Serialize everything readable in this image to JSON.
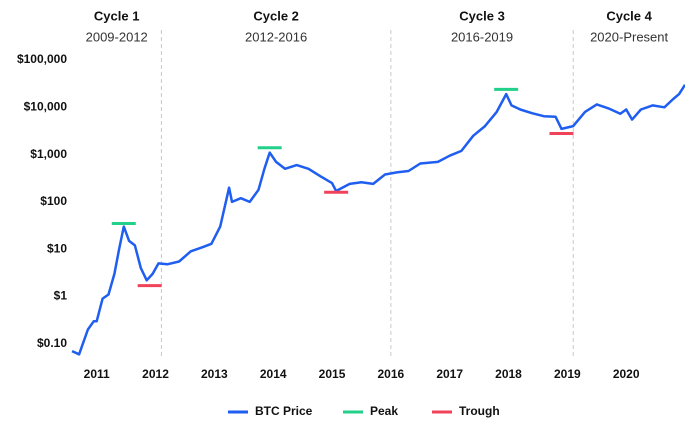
{
  "chart_data": {
    "type": "line",
    "log_y": true,
    "grid": false,
    "xlim": [
      2010.58,
      2021.0
    ],
    "xticks": [
      2011,
      2012,
      2013,
      2014,
      2015,
      2016,
      2017,
      2018,
      2019,
      2020
    ],
    "ylim": [
      0.05,
      150000
    ],
    "yticks": [
      {
        "value": 0.1,
        "label": "$0.10"
      },
      {
        "value": 1,
        "label": "$1"
      },
      {
        "value": 10,
        "label": "$10"
      },
      {
        "value": 100,
        "label": "$100"
      },
      {
        "value": 1000,
        "label": "$1,000"
      },
      {
        "value": 10000,
        "label": "$10,000"
      },
      {
        "value": 100000,
        "label": "$100,000"
      }
    ],
    "dividers": [
      2012.1,
      2016.0,
      2019.1
    ],
    "annotations": [
      {
        "title": "Cycle 1",
        "subtitle": "2009-2012"
      },
      {
        "title": "Cycle 2",
        "subtitle": "2012-2016"
      },
      {
        "title": "Cycle 3",
        "subtitle": "2016-2019"
      },
      {
        "title": "Cycle 4",
        "subtitle": "2020-Present"
      }
    ],
    "legend": "bottom",
    "series": [
      {
        "name": "BTC Price",
        "color": "#1f5ef0",
        "type": "line",
        "x": [
          2010.58,
          2010.7,
          2010.85,
          2010.95,
          2011.0,
          2011.1,
          2011.2,
          2011.3,
          2011.38,
          2011.46,
          2011.55,
          2011.65,
          2011.75,
          2011.85,
          2011.95,
          2012.05,
          2012.2,
          2012.4,
          2012.6,
          2012.8,
          2012.95,
          2013.1,
          2013.25,
          2013.3,
          2013.45,
          2013.6,
          2013.75,
          2013.85,
          2013.94,
          2014.05,
          2014.2,
          2014.4,
          2014.6,
          2014.8,
          2015.0,
          2015.07,
          2015.3,
          2015.5,
          2015.7,
          2015.9,
          2016.1,
          2016.3,
          2016.5,
          2016.8,
          2017.0,
          2017.2,
          2017.4,
          2017.6,
          2017.8,
          2017.96,
          2018.05,
          2018.2,
          2018.4,
          2018.6,
          2018.8,
          2018.9,
          2019.1,
          2019.3,
          2019.5,
          2019.7,
          2019.9,
          2020.0,
          2020.1,
          2020.25,
          2020.45,
          2020.65,
          2020.8,
          2020.9,
          2021.0
        ],
        "values": [
          0.07,
          0.06,
          0.2,
          0.3,
          0.3,
          0.9,
          1.1,
          3,
          10,
          30,
          15,
          12,
          4,
          2.2,
          3,
          5,
          4.8,
          5.5,
          9,
          11,
          13,
          30,
          200,
          100,
          120,
          100,
          180,
          500,
          1100,
          700,
          500,
          600,
          500,
          350,
          250,
          170,
          240,
          260,
          240,
          380,
          420,
          450,
          650,
          700,
          950,
          1200,
          2500,
          4000,
          8000,
          19000,
          11000,
          9000,
          7500,
          6500,
          6300,
          3500,
          4000,
          8000,
          11500,
          9500,
          7300,
          9000,
          5500,
          9000,
          11000,
          10000,
          15000,
          19000,
          30000
        ]
      },
      {
        "name": "Peak",
        "color": "#22d08a",
        "type": "hline-marker",
        "x": [
          2011.46,
          2013.94,
          2017.96
        ],
        "values": [
          35,
          1400,
          24000
        ]
      },
      {
        "name": "Trough",
        "color": "#f0435a",
        "type": "hline-marker",
        "x": [
          2011.9,
          2015.07,
          2018.9
        ],
        "values": [
          1.7,
          160,
          2800
        ]
      }
    ]
  }
}
